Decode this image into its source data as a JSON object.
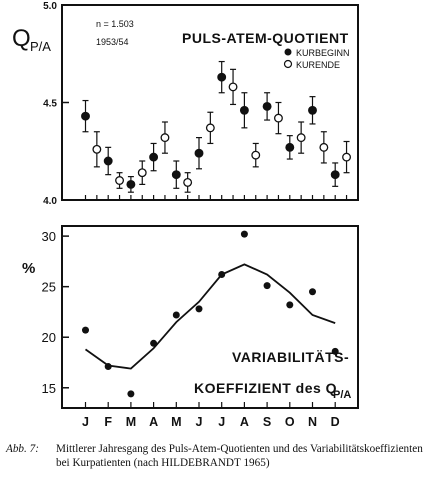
{
  "chart_data": [
    {
      "type": "scatter",
      "ylabel_main": "Q",
      "ylabel_sub": "P/A",
      "title": "PULS-ATEM-QUOTIENT",
      "note_n": "n = 1.503",
      "note_year": "1953/54",
      "ylim": [
        4.0,
        5.0
      ],
      "ytick_labels": [
        "4.0",
        "4.5",
        "5.0"
      ],
      "yticks": [
        4.0,
        4.5,
        5.0
      ],
      "x_positions": [
        1,
        1.5,
        2,
        2.5,
        3,
        3.5,
        4,
        4.5,
        5,
        5.5,
        6,
        6.5,
        7,
        7.5,
        8,
        8.5,
        9,
        9.5,
        10,
        10.5,
        11,
        11.5,
        12,
        12.5
      ],
      "series": [
        {
          "name": "KURBEGINN",
          "marker": "filled-circle",
          "x": [
            1,
            2,
            3,
            4,
            5,
            6,
            7,
            8,
            9,
            10,
            11,
            12
          ],
          "y": [
            4.43,
            4.2,
            4.08,
            4.22,
            4.13,
            4.24,
            4.63,
            4.46,
            4.48,
            4.27,
            4.46,
            4.13
          ],
          "err": [
            0.08,
            0.07,
            0.04,
            0.07,
            0.07,
            0.08,
            0.08,
            0.09,
            0.07,
            0.06,
            0.07,
            0.06
          ]
        },
        {
          "name": "KURENDE",
          "marker": "open-circle",
          "x": [
            1.5,
            2.5,
            3.5,
            4.5,
            5.5,
            6.5,
            7.5,
            8.5,
            9.5,
            10.5,
            11.5,
            12.5
          ],
          "y": [
            4.26,
            4.1,
            4.14,
            4.32,
            4.09,
            4.37,
            4.58,
            4.23,
            4.42,
            4.32,
            4.27,
            4.22
          ],
          "err": [
            0.09,
            0.04,
            0.06,
            0.08,
            0.05,
            0.08,
            0.09,
            0.06,
            0.08,
            0.08,
            0.08,
            0.08
          ]
        }
      ]
    },
    {
      "type": "line",
      "ylabel": "%",
      "title_line1": "VARIABILITÄTS-",
      "title_line2": "KOEFFIZIENT des Q",
      "title_sub": "P/A",
      "ylim": [
        13,
        31
      ],
      "ytick_labels": [
        "15",
        "20",
        "25",
        "30"
      ],
      "yticks": [
        15,
        20,
        25,
        30
      ],
      "categories": [
        "J",
        "F",
        "M",
        "A",
        "M",
        "J",
        "J",
        "A",
        "S",
        "O",
        "N",
        "D"
      ],
      "points_x": [
        1,
        2,
        3,
        4,
        5,
        6,
        7,
        8,
        9,
        10,
        11,
        12
      ],
      "points_y": [
        20.7,
        17.1,
        14.4,
        19.4,
        22.2,
        22.8,
        26.2,
        30.2,
        25.1,
        23.2,
        24.5,
        18.6
      ],
      "line_x": [
        1,
        2,
        3,
        4,
        5,
        6,
        7,
        8,
        9,
        10,
        11,
        12
      ],
      "line_y": [
        18.8,
        17.2,
        16.9,
        18.9,
        21.5,
        23.5,
        26.2,
        27.2,
        26.2,
        24.4,
        22.2,
        21.4
      ]
    }
  ],
  "caption": {
    "label": "Abb. 7:",
    "text": "Mittlerer Jahresgang des Puls-Atem-Quotienten und des Variabilitätskoeffizienten bei Kurpatienten (nach HILDEBRANDT 1965)"
  }
}
